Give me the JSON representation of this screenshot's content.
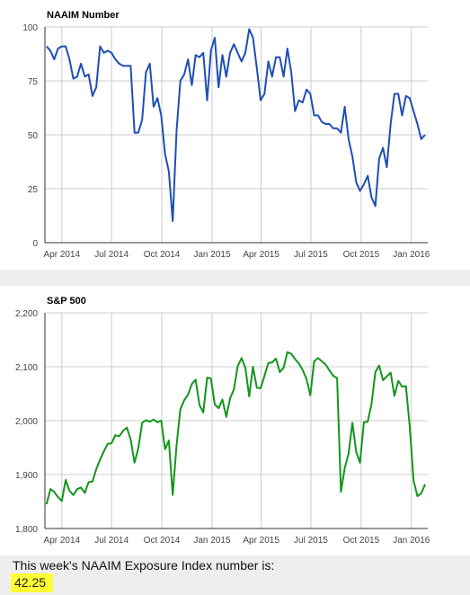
{
  "chart_data": [
    {
      "type": "line",
      "title": "NAAIM Number",
      "ylim": [
        0,
        100
      ],
      "y_ticks": [
        "0",
        "25",
        "50",
        "75",
        "100"
      ],
      "x_ticks": [
        {
          "date": "2014-04-01",
          "label": "Apr 2014"
        },
        {
          "date": "2014-07-01",
          "label": "Jul 2014"
        },
        {
          "date": "2014-10-01",
          "label": "Oct 2014"
        },
        {
          "date": "2015-01-01",
          "label": "Jan 2015"
        },
        {
          "date": "2015-04-01",
          "label": "Apr 2015"
        },
        {
          "date": "2015-07-01",
          "label": "Jul 2015"
        },
        {
          "date": "2015-10-01",
          "label": "Oct 2015"
        },
        {
          "date": "2016-01-01",
          "label": "Jan 2016"
        }
      ],
      "xlim": [
        "2014-03-01",
        "2016-01-31"
      ],
      "grid": true,
      "color": "#1f4fb4",
      "series": [
        {
          "x": [
            "2014-03-04",
            "2014-03-11",
            "2014-03-18",
            "2014-03-25",
            "2014-04-01",
            "2014-04-08",
            "2014-04-15",
            "2014-04-22",
            "2014-04-29",
            "2014-05-06",
            "2014-05-13",
            "2014-05-20",
            "2014-05-27",
            "2014-06-03",
            "2014-06-10",
            "2014-06-17",
            "2014-06-24",
            "2014-07-01",
            "2014-07-08",
            "2014-07-15",
            "2014-07-22",
            "2014-07-29",
            "2014-08-05",
            "2014-08-12",
            "2014-08-19",
            "2014-08-26",
            "2014-09-02",
            "2014-09-09",
            "2014-09-16",
            "2014-09-23",
            "2014-09-30",
            "2014-10-07",
            "2014-10-14",
            "2014-10-21",
            "2014-10-28",
            "2014-11-04",
            "2014-11-11",
            "2014-11-18",
            "2014-11-25",
            "2014-12-02",
            "2014-12-09",
            "2014-12-16",
            "2014-12-23",
            "2014-12-30",
            "2015-01-06",
            "2015-01-13",
            "2015-01-20",
            "2015-01-27",
            "2015-02-03",
            "2015-02-10",
            "2015-02-17",
            "2015-02-24",
            "2015-03-03",
            "2015-03-10",
            "2015-03-17",
            "2015-03-24",
            "2015-03-31",
            "2015-04-07",
            "2015-04-14",
            "2015-04-21",
            "2015-04-28",
            "2015-05-05",
            "2015-05-12",
            "2015-05-19",
            "2015-05-26",
            "2015-06-02",
            "2015-06-09",
            "2015-06-16",
            "2015-06-23",
            "2015-06-30",
            "2015-07-07",
            "2015-07-14",
            "2015-07-21",
            "2015-07-28",
            "2015-08-04",
            "2015-08-11",
            "2015-08-18",
            "2015-08-25",
            "2015-09-01",
            "2015-09-08",
            "2015-09-15",
            "2015-09-22",
            "2015-09-29",
            "2015-10-06",
            "2015-10-13",
            "2015-10-20",
            "2015-10-27",
            "2015-11-03",
            "2015-11-10",
            "2015-11-17",
            "2015-11-24",
            "2015-12-01",
            "2015-12-08",
            "2015-12-15",
            "2015-12-22",
            "2015-12-29",
            "2016-01-05",
            "2016-01-12",
            "2016-01-19",
            "2016-01-26"
          ],
          "y": [
            91,
            89,
            85,
            90,
            91,
            91,
            85,
            76,
            77,
            83,
            77,
            78,
            68,
            72,
            91,
            88,
            89,
            88,
            85,
            83,
            82,
            82,
            82,
            51,
            51,
            57,
            79,
            83,
            63,
            67,
            59,
            41,
            33,
            10,
            52,
            75,
            78,
            85,
            73,
            87,
            86,
            88,
            66,
            89,
            95,
            72,
            87,
            77,
            88,
            92,
            88,
            84,
            88,
            99,
            95,
            81,
            66,
            69,
            84,
            77,
            86,
            86,
            77,
            90,
            79,
            61,
            66,
            65,
            71,
            69,
            59,
            59,
            56,
            55,
            55,
            53,
            53,
            51,
            63,
            48,
            40,
            28,
            24,
            27,
            31,
            21,
            17,
            39,
            44,
            35,
            55,
            69,
            69,
            59,
            68,
            67,
            61,
            55,
            48,
            50
          ]
        }
      ]
    },
    {
      "type": "line",
      "title": "S&P 500",
      "ylim": [
        1800,
        2200
      ],
      "y_ticks": [
        "1,800",
        "1,900",
        "2,000",
        "2,100",
        "2,200"
      ],
      "x_ticks": [
        {
          "date": "2014-04-01",
          "label": "Apr 2014"
        },
        {
          "date": "2014-07-01",
          "label": "Jul 2014"
        },
        {
          "date": "2014-10-01",
          "label": "Oct 2014"
        },
        {
          "date": "2015-01-01",
          "label": "Jan 2015"
        },
        {
          "date": "2015-04-01",
          "label": "Apr 2015"
        },
        {
          "date": "2015-07-01",
          "label": "Jul 2015"
        },
        {
          "date": "2015-10-01",
          "label": "Oct 2015"
        },
        {
          "date": "2016-01-01",
          "label": "Jan 2016"
        }
      ],
      "xlim": [
        "2014-03-01",
        "2016-01-31"
      ],
      "grid": true,
      "color": "#12961a",
      "series": [
        {
          "x": [
            "2014-03-04",
            "2014-03-11",
            "2014-03-18",
            "2014-03-25",
            "2014-04-01",
            "2014-04-08",
            "2014-04-15",
            "2014-04-22",
            "2014-04-29",
            "2014-05-06",
            "2014-05-13",
            "2014-05-20",
            "2014-05-27",
            "2014-06-03",
            "2014-06-10",
            "2014-06-17",
            "2014-06-24",
            "2014-07-01",
            "2014-07-08",
            "2014-07-15",
            "2014-07-22",
            "2014-07-29",
            "2014-08-05",
            "2014-08-12",
            "2014-08-19",
            "2014-08-26",
            "2014-09-02",
            "2014-09-09",
            "2014-09-16",
            "2014-09-23",
            "2014-09-30",
            "2014-10-07",
            "2014-10-14",
            "2014-10-21",
            "2014-10-28",
            "2014-11-04",
            "2014-11-11",
            "2014-11-18",
            "2014-11-25",
            "2014-12-02",
            "2014-12-09",
            "2014-12-16",
            "2014-12-23",
            "2014-12-30",
            "2015-01-06",
            "2015-01-13",
            "2015-01-20",
            "2015-01-27",
            "2015-02-03",
            "2015-02-10",
            "2015-02-17",
            "2015-02-24",
            "2015-03-03",
            "2015-03-10",
            "2015-03-17",
            "2015-03-24",
            "2015-03-31",
            "2015-04-07",
            "2015-04-14",
            "2015-04-21",
            "2015-04-28",
            "2015-05-05",
            "2015-05-12",
            "2015-05-19",
            "2015-05-26",
            "2015-06-02",
            "2015-06-09",
            "2015-06-16",
            "2015-06-23",
            "2015-06-30",
            "2015-07-07",
            "2015-07-14",
            "2015-07-21",
            "2015-07-28",
            "2015-08-04",
            "2015-08-11",
            "2015-08-18",
            "2015-08-25",
            "2015-09-01",
            "2015-09-08",
            "2015-09-15",
            "2015-09-22",
            "2015-09-29",
            "2015-10-06",
            "2015-10-13",
            "2015-10-20",
            "2015-10-27",
            "2015-11-03",
            "2015-11-10",
            "2015-11-17",
            "2015-11-24",
            "2015-12-01",
            "2015-12-08",
            "2015-12-15",
            "2015-12-22",
            "2015-12-29",
            "2016-01-05",
            "2016-01-12",
            "2016-01-19",
            "2016-01-26"
          ],
          "y": [
            1845,
            1873,
            1868,
            1858,
            1851,
            1890,
            1870,
            1862,
            1873,
            1876,
            1866,
            1886,
            1887,
            1910,
            1928,
            1943,
            1957,
            1958,
            1973,
            1971,
            1981,
            1987,
            1965,
            1922,
            1949,
            1996,
            2001,
            1998,
            2002,
            1997,
            2000,
            1947,
            1963,
            1862,
            1955,
            2021,
            2038,
            2048,
            2068,
            2076,
            2029,
            2015,
            2080,
            2078,
            2030,
            2023,
            2039,
            2007,
            2041,
            2058,
            2101,
            2116,
            2098,
            2045,
            2100,
            2061,
            2060,
            2083,
            2107,
            2108,
            2115,
            2090,
            2098,
            2127,
            2124,
            2114,
            2106,
            2094,
            2077,
            2047,
            2110,
            2116,
            2110,
            2104,
            2093,
            2083,
            2079,
            1868,
            1912,
            1939,
            1996,
            1942,
            1922,
            1997,
            1998,
            2031,
            2090,
            2102,
            2075,
            2082,
            2089,
            2046,
            2074,
            2063,
            2064,
            1990,
            1889,
            1860,
            1865,
            1882
          ]
        }
      ]
    }
  ],
  "caption": "This week's NAAIM Exposure Index number is:",
  "exposure_value": "42.25"
}
